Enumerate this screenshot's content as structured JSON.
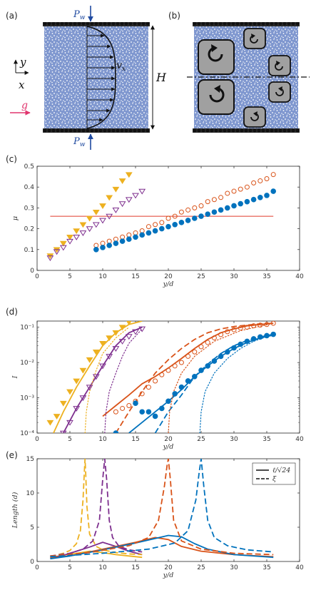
{
  "panels": {
    "a": {
      "label": "(a)",
      "pw_top": "P",
      "pw_top_sub": "w",
      "pw_bot": "P",
      "pw_bot_sub": "w",
      "y_axis": "y",
      "x_axis": "x",
      "vx": "v",
      "vx_sub": "x",
      "height": "H",
      "gravity": "g"
    },
    "b": {
      "label": "(b)"
    },
    "c": {
      "label": "(c)"
    },
    "d": {
      "label": "(d)"
    },
    "e": {
      "label": "(e)"
    }
  },
  "colors": {
    "bed": "#7f97cf",
    "orange": "#d95319",
    "yellow": "#edb120",
    "purple": "#7e2f8e",
    "blue": "#0072bd",
    "red": "#e03a2a",
    "gravity": "#e0356e",
    "pressure": "#1f4aa0"
  },
  "chart_data": [
    {
      "id": "c",
      "type": "scatter",
      "xlabel": "y/d",
      "ylabel": "μ",
      "xlim": [
        0,
        40
      ],
      "ylim": [
        0,
        0.5
      ],
      "xticks": [
        "0",
        "5",
        "10",
        "15",
        "20",
        "25",
        "30",
        "35",
        "40"
      ],
      "yticks": [
        "0",
        "0.1",
        "0.2",
        "0.3",
        "0.4",
        "0.5"
      ],
      "hline": {
        "y": 0.26,
        "x": [
          2,
          36
        ]
      },
      "series": [
        {
          "color": "yellow",
          "marker": "tri-down-filled",
          "x": [
            2,
            3,
            4,
            5,
            6,
            7,
            8,
            9,
            10,
            11,
            12,
            13,
            14
          ],
          "y": [
            0.07,
            0.1,
            0.13,
            0.16,
            0.19,
            0.22,
            0.25,
            0.28,
            0.31,
            0.35,
            0.39,
            0.43,
            0.46
          ]
        },
        {
          "color": "purple",
          "marker": "tri-down-open",
          "x": [
            2,
            3,
            4,
            5,
            6,
            7,
            8,
            9,
            10,
            11,
            12,
            13,
            14,
            15,
            16
          ],
          "y": [
            0.06,
            0.09,
            0.11,
            0.14,
            0.16,
            0.18,
            0.2,
            0.22,
            0.24,
            0.26,
            0.29,
            0.32,
            0.34,
            0.36,
            0.38
          ]
        },
        {
          "color": "orange",
          "marker": "circle-open",
          "x": [
            9,
            10,
            11,
            12,
            13,
            14,
            15,
            16,
            17,
            18,
            19,
            20,
            21,
            22,
            23,
            24,
            25,
            26,
            27,
            28,
            29,
            30,
            31,
            32,
            33,
            34,
            35,
            36
          ],
          "y": [
            0.12,
            0.13,
            0.14,
            0.15,
            0.16,
            0.17,
            0.18,
            0.19,
            0.21,
            0.22,
            0.23,
            0.25,
            0.26,
            0.28,
            0.29,
            0.3,
            0.31,
            0.33,
            0.34,
            0.35,
            0.37,
            0.38,
            0.39,
            0.4,
            0.42,
            0.43,
            0.44,
            0.46
          ]
        },
        {
          "color": "blue",
          "marker": "circle-filled",
          "x": [
            9,
            10,
            11,
            12,
            13,
            14,
            15,
            16,
            17,
            18,
            19,
            20,
            21,
            22,
            23,
            24,
            25,
            26,
            27,
            28,
            29,
            30,
            31,
            32,
            33,
            34,
            35,
            36
          ],
          "y": [
            0.1,
            0.11,
            0.12,
            0.13,
            0.14,
            0.15,
            0.16,
            0.17,
            0.18,
            0.19,
            0.2,
            0.21,
            0.22,
            0.23,
            0.24,
            0.25,
            0.26,
            0.27,
            0.28,
            0.29,
            0.3,
            0.31,
            0.32,
            0.33,
            0.34,
            0.35,
            0.36,
            0.38
          ]
        }
      ]
    },
    {
      "id": "d",
      "type": "scatter",
      "log_y": true,
      "xlabel": "y/d",
      "ylabel": "I",
      "xlim": [
        0,
        40
      ],
      "ylim": [
        0.0001,
        0.15
      ],
      "xticks": [
        "0",
        "5",
        "10",
        "15",
        "20",
        "25",
        "30",
        "35",
        "40"
      ],
      "yticks": [
        "10⁻⁴",
        "10⁻³",
        "10⁻²",
        "10⁻¹"
      ],
      "ytick_values": [
        0.0001,
        0.001,
        0.01,
        0.1
      ],
      "series": [
        {
          "color": "yellow",
          "marker": "tri-down-filled",
          "x": [
            2,
            3,
            4,
            5,
            6,
            7,
            8,
            9,
            10,
            11,
            12,
            13,
            14
          ],
          "y": [
            0.0002,
            0.0003,
            0.0007,
            0.0015,
            0.003,
            0.006,
            0.012,
            0.02,
            0.035,
            0.05,
            0.07,
            0.1,
            0.14
          ]
        },
        {
          "color": "purple",
          "marker": "tri-down-open",
          "x": [
            4,
            5,
            6,
            7,
            8,
            9,
            10,
            11,
            12,
            13,
            14,
            15,
            16
          ],
          "y": [
            0.0001,
            0.0002,
            0.0005,
            0.001,
            0.002,
            0.004,
            0.008,
            0.015,
            0.025,
            0.04,
            0.055,
            0.075,
            0.09
          ]
        },
        {
          "color": "orange",
          "marker": "circle-open",
          "x": [
            12,
            13,
            14,
            15,
            16,
            17,
            18,
            19,
            20,
            21,
            22,
            23,
            24,
            25,
            26,
            27,
            28,
            29,
            30,
            31,
            32,
            33,
            34,
            35,
            36
          ],
          "y": [
            0.0004,
            0.0005,
            0.0006,
            0.0008,
            0.0013,
            0.002,
            0.003,
            0.0045,
            0.006,
            0.008,
            0.01,
            0.015,
            0.02,
            0.028,
            0.037,
            0.05,
            0.062,
            0.075,
            0.085,
            0.095,
            0.1,
            0.11,
            0.115,
            0.12,
            0.13
          ]
        },
        {
          "color": "blue",
          "marker": "circle-filled",
          "x": [
            12,
            15,
            16,
            17,
            18,
            19,
            20,
            21,
            22,
            23,
            24,
            25,
            26,
            27,
            28,
            29,
            30,
            31,
            32,
            33,
            34,
            35,
            36
          ],
          "y": [
            0.0001,
            0.0007,
            0.0004,
            0.0004,
            0.0003,
            0.0005,
            0.0008,
            0.0013,
            0.002,
            0.003,
            0.004,
            0.006,
            0.008,
            0.011,
            0.015,
            0.02,
            0.026,
            0.033,
            0.04,
            0.047,
            0.053,
            0.058,
            0.063
          ]
        }
      ],
      "curves": [
        {
          "color": "yellow",
          "style": "solid",
          "x": [
            2.5,
            4,
            6,
            8,
            10,
            12,
            14,
            16
          ],
          "y": [
            0.0001,
            0.0004,
            0.002,
            0.008,
            0.03,
            0.07,
            0.12,
            0.15
          ]
        },
        {
          "color": "purple",
          "style": "solid",
          "x": [
            4,
            6,
            8,
            10,
            12,
            14,
            16
          ],
          "y": [
            0.0001,
            0.0005,
            0.002,
            0.008,
            0.03,
            0.07,
            0.1
          ]
        },
        {
          "color": "orange",
          "style": "solid",
          "x": [
            10,
            12,
            14,
            16,
            18,
            20,
            22,
            24,
            26,
            28,
            30,
            32,
            34,
            36
          ],
          "y": [
            0.0003,
            0.0006,
            0.0012,
            0.0025,
            0.004,
            0.007,
            0.013,
            0.025,
            0.045,
            0.07,
            0.09,
            0.11,
            0.12,
            0.13
          ]
        },
        {
          "color": "blue",
          "style": "solid",
          "x": [
            14,
            16,
            18,
            20,
            22,
            24,
            26,
            28,
            30,
            32,
            34,
            36
          ],
          "y": [
            0.0001,
            0.0002,
            0.0004,
            0.0008,
            0.0017,
            0.004,
            0.008,
            0.015,
            0.025,
            0.037,
            0.05,
            0.06
          ]
        },
        {
          "color": "orange",
          "style": "dashed",
          "x": [
            12,
            14,
            16,
            18,
            20,
            22,
            24,
            26,
            28,
            30,
            32,
            34,
            36
          ],
          "y": [
            0.0001,
            0.0004,
            0.0015,
            0.005,
            0.012,
            0.025,
            0.045,
            0.07,
            0.09,
            0.105,
            0.115,
            0.125,
            0.13
          ]
        },
        {
          "color": "blue",
          "style": "dashed",
          "x": [
            18,
            20,
            22,
            24,
            26,
            28,
            30,
            32,
            34,
            36
          ],
          "y": [
            0.0001,
            0.0004,
            0.0012,
            0.004,
            0.009,
            0.018,
            0.03,
            0.042,
            0.053,
            0.063
          ]
        },
        {
          "color": "yellow",
          "style": "dotted",
          "x": [
            7.3,
            7.5,
            8,
            9,
            10,
            12,
            14
          ],
          "y": [
            0.0001,
            0.0004,
            0.0015,
            0.006,
            0.018,
            0.05,
            0.1
          ]
        },
        {
          "color": "purple",
          "style": "dotted",
          "x": [
            10.3,
            10.5,
            11,
            12,
            13,
            14,
            16
          ],
          "y": [
            0.0001,
            0.0004,
            0.0015,
            0.005,
            0.015,
            0.035,
            0.09
          ]
        },
        {
          "color": "orange",
          "style": "dotted",
          "x": [
            20,
            20.2,
            20.8,
            22,
            24,
            27,
            31,
            36
          ],
          "y": [
            0.0001,
            0.0004,
            0.0015,
            0.005,
            0.015,
            0.04,
            0.08,
            0.13
          ]
        },
        {
          "color": "blue",
          "style": "dotted",
          "x": [
            24.8,
            25,
            25.6,
            27,
            29,
            31,
            33,
            36
          ],
          "y": [
            0.0001,
            0.0004,
            0.0015,
            0.005,
            0.013,
            0.025,
            0.04,
            0.063
          ]
        }
      ]
    },
    {
      "id": "e",
      "type": "line",
      "xlabel": "y/d",
      "ylabel": "Length (d)",
      "xlim": [
        0,
        40
      ],
      "ylim": [
        0,
        15
      ],
      "xticks": [
        "0",
        "5",
        "10",
        "15",
        "20",
        "25",
        "30",
        "35",
        "40"
      ],
      "yticks": [
        "0",
        "5",
        "10",
        "15"
      ],
      "legend": {
        "position": "top-right",
        "entries": [
          {
            "style": "solid",
            "label": "ℓ/√24"
          },
          {
            "style": "dashed",
            "label": "ξ"
          }
        ]
      },
      "series": [
        {
          "color": "yellow",
          "style": "solid",
          "x": [
            2,
            4,
            6,
            8,
            10,
            12,
            14,
            16
          ],
          "y": [
            0.6,
            0.9,
            1.2,
            1.5,
            1.3,
            1.0,
            0.8,
            0.6
          ]
        },
        {
          "color": "purple",
          "style": "solid",
          "x": [
            2,
            4,
            6,
            8,
            10,
            12,
            14,
            16
          ],
          "y": [
            0.5,
            0.9,
            1.5,
            2.1,
            2.8,
            2.2,
            1.5,
            1.0
          ]
        },
        {
          "color": "orange",
          "style": "solid",
          "x": [
            2,
            5,
            10,
            15,
            18,
            20,
            22,
            25,
            30,
            36
          ],
          "y": [
            0.5,
            0.8,
            1.8,
            2.8,
            3.5,
            3.2,
            2.2,
            1.5,
            1.0,
            0.7
          ]
        },
        {
          "color": "blue",
          "style": "solid",
          "x": [
            2,
            5,
            10,
            15,
            20,
            22,
            24,
            26,
            30,
            36
          ],
          "y": [
            0.4,
            0.8,
            1.7,
            2.7,
            3.8,
            3.6,
            2.6,
            1.8,
            1.0,
            0.6
          ]
        },
        {
          "color": "yellow",
          "style": "dashed",
          "x": [
            2,
            4,
            5,
            6,
            6.6,
            7.0,
            7.2,
            7.3,
            7.4,
            7.6,
            8.0,
            9,
            10,
            12,
            14,
            16
          ],
          "y": [
            0.7,
            1.2,
            1.6,
            2.6,
            4.5,
            9.0,
            13.0,
            15.0,
            13.0,
            8.0,
            4.0,
            2.2,
            1.7,
            1.3,
            1.1,
            1.0
          ]
        },
        {
          "color": "purple",
          "style": "dashed",
          "x": [
            2,
            5,
            7,
            8.5,
            9.5,
            10.0,
            10.3,
            10.6,
            11.0,
            11.5,
            12.5,
            14,
            16
          ],
          "y": [
            0.8,
            1.2,
            1.8,
            3.0,
            6.0,
            12.0,
            15.0,
            12.0,
            6.0,
            3.5,
            2.2,
            1.7,
            1.4
          ]
        },
        {
          "color": "orange",
          "style": "dashed",
          "x": [
            2,
            8,
            14,
            17,
            18.5,
            19.4,
            19.8,
            20.0,
            20.3,
            20.8,
            22,
            25,
            30,
            36
          ],
          "y": [
            0.8,
            1.3,
            2.3,
            3.5,
            6.0,
            11.0,
            14.0,
            15.0,
            12.0,
            6.0,
            3.0,
            1.8,
            1.2,
            1.0
          ]
        },
        {
          "color": "blue",
          "style": "dashed",
          "x": [
            2,
            10,
            17,
            21,
            23,
            24.2,
            24.7,
            25.0,
            25.4,
            26,
            27,
            29,
            32,
            36
          ],
          "y": [
            0.7,
            1.2,
            1.8,
            2.7,
            4.5,
            9.0,
            13.0,
            15.0,
            11.0,
            6.0,
            3.5,
            2.3,
            1.7,
            1.4
          ]
        }
      ]
    }
  ]
}
